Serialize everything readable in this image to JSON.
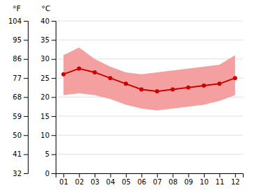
{
  "chart_data": {
    "type": "line",
    "categories": [
      "01",
      "02",
      "03",
      "04",
      "05",
      "06",
      "07",
      "08",
      "09",
      "10",
      "11",
      "12"
    ],
    "series": [
      {
        "type": "band",
        "color": "#f5a0a0",
        "low": [
          20.5,
          21.0,
          20.5,
          19.5,
          18.0,
          17.0,
          16.5,
          17.0,
          17.5,
          18.0,
          19.0,
          20.5
        ],
        "high": [
          31.0,
          33.0,
          30.0,
          28.0,
          26.5,
          26.0,
          26.5,
          27.0,
          27.5,
          28.0,
          28.5,
          31.0
        ]
      },
      {
        "type": "line",
        "color": "#cc0000",
        "marker": "circle",
        "values": [
          26.0,
          27.5,
          26.5,
          25.0,
          23.5,
          22.0,
          21.5,
          22.0,
          22.5,
          23.0,
          23.5,
          25.0
        ]
      }
    ],
    "ylabel": "°C",
    "ylim": [
      0,
      40
    ],
    "yticks": [
      0,
      5,
      10,
      15,
      20,
      25,
      30,
      35,
      40
    ],
    "y2label": "°F",
    "y2lim": [
      32,
      104
    ],
    "y2ticks": [
      32,
      41,
      50,
      59,
      68,
      77,
      86,
      95,
      104
    ],
    "grid": true
  }
}
